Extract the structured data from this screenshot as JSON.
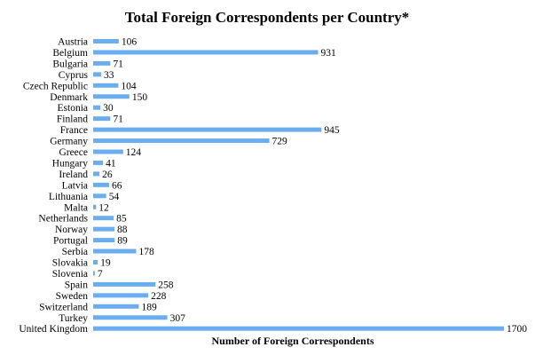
{
  "chart_data": {
    "type": "bar",
    "orientation": "horizontal",
    "title": "Total Foreign Correspondents per Country*",
    "xlabel": "Number of Foreign Correspondents",
    "ylabel": "",
    "xlim": [
      0,
      1700
    ],
    "grid": false,
    "legend": "none",
    "bar_color": "#6aaef0",
    "categories": [
      "Austria",
      "Belgium",
      "Bulgaria",
      "Cyprus",
      "Czech Republic",
      "Denmark",
      "Estonia",
      "Finland",
      "France",
      "Germany",
      "Greece",
      "Hungary",
      "Ireland",
      "Latvia",
      "Lithuania",
      "Malta",
      "Netherlands",
      "Norway",
      "Portugal",
      "Serbia",
      "Slovakia",
      "Slovenia",
      "Spain",
      "Sweden",
      "Switzerland",
      "Turkey",
      "United Kingdom"
    ],
    "values": [
      106,
      931,
      71,
      33,
      104,
      150,
      30,
      71,
      945,
      729,
      124,
      41,
      26,
      66,
      54,
      12,
      85,
      88,
      89,
      178,
      19,
      7,
      258,
      228,
      189,
      307,
      1700
    ]
  }
}
